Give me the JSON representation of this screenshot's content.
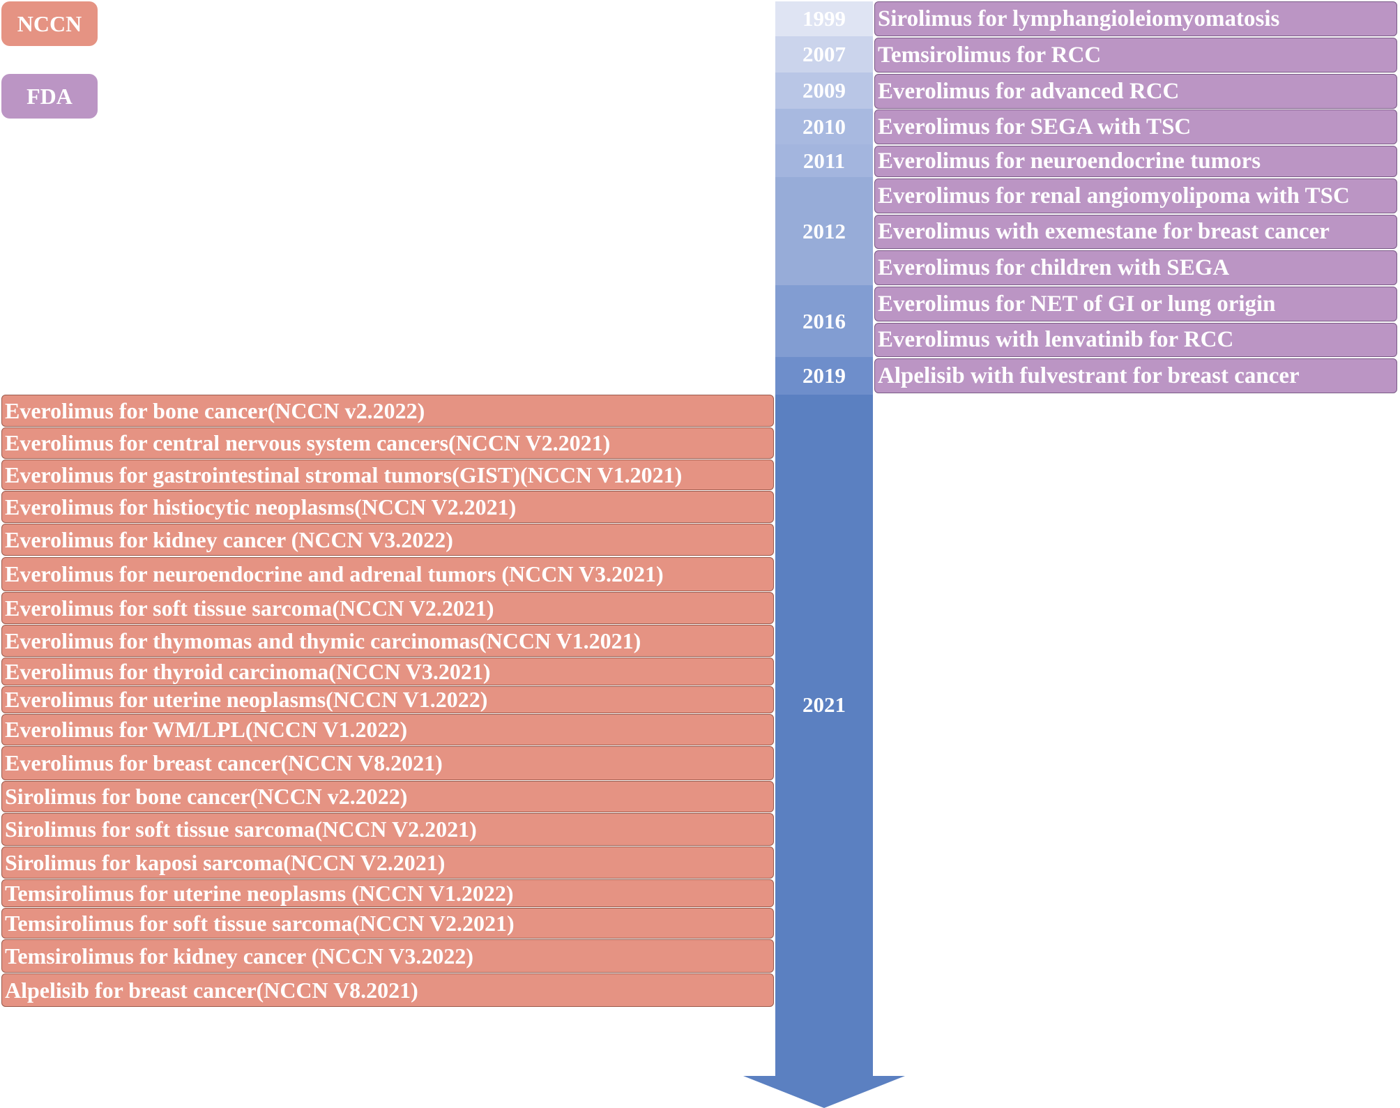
{
  "colors": {
    "nccn": "#e59383",
    "fda": "#bb95c4",
    "timeline_2021": "#5b80c1"
  },
  "legend": {
    "nccn_label": "NCCN",
    "fda_label": "FDA"
  },
  "years": [
    {
      "label": "1999",
      "color": "#dfe4f3"
    },
    {
      "label": "2007",
      "color": "#cbd4ec"
    },
    {
      "label": "2009",
      "color": "#b9c6e6"
    },
    {
      "label": "2010",
      "color": "#a8b9e0"
    },
    {
      "label": "2011",
      "color": "#a3b5de"
    },
    {
      "label": "2012",
      "color": "#97acd8"
    },
    {
      "label": "2016",
      "color": "#829dd2"
    },
    {
      "label": "2019",
      "color": "#6e8ecb"
    },
    {
      "label": "2021",
      "color": "#5b80c1"
    }
  ],
  "fda_items": [
    "Sirolimus for lymphangioleiomyomatosis",
    "Temsirolimus for RCC",
    "Everolimus for advanced RCC",
    "Everolimus for SEGA with TSC",
    "Everolimus for neuroendocrine tumors",
    "Everolimus for renal angiomyolipoma with TSC",
    "Everolimus with exemestane for breast cancer",
    "Everolimus for children with SEGA",
    "Everolimus for NET of GI or lung origin",
    "Everolimus with lenvatinib for RCC",
    "Alpelisib with fulvestrant for breast cancer"
  ],
  "nccn_items": [
    "Everolimus for bone cancer(NCCN v2.2022)",
    "Everolimus for central nervous system cancers(NCCN V2.2021)",
    "Everolimus for gastrointestinal stromal tumors(GIST)(NCCN V1.2021)",
    "Everolimus for histiocytic neoplasms(NCCN V2.2021)",
    "Everolimus for kidney cancer (NCCN V3.2022)",
    "Everolimus for neuroendocrine and adrenal tumors (NCCN V3.2021)",
    "Everolimus for soft tissue sarcoma(NCCN V2.2021)",
    "Everolimus for thymomas and thymic carcinomas(NCCN V1.2021)",
    "Everolimus for thyroid carcinoma(NCCN V3.2021)",
    "Everolimus for uterine neoplasms(NCCN V1.2022)",
    "Everolimus for WM/LPL(NCCN V1.2022)",
    "Everolimus for breast cancer(NCCN V8.2021)",
    "Sirolimus for bone cancer(NCCN v2.2022)",
    "Sirolimus for soft tissue sarcoma(NCCN V2.2021)",
    "Sirolimus for kaposi sarcoma(NCCN V2.2021)",
    "Temsirolimus for uterine neoplasms (NCCN V1.2022)",
    "Temsirolimus for soft tissue sarcoma(NCCN V2.2021)",
    "Temsirolimus for kidney cancer (NCCN V3.2022)",
    "Alpelisib for breast cancer(NCCN V8.2021)"
  ]
}
